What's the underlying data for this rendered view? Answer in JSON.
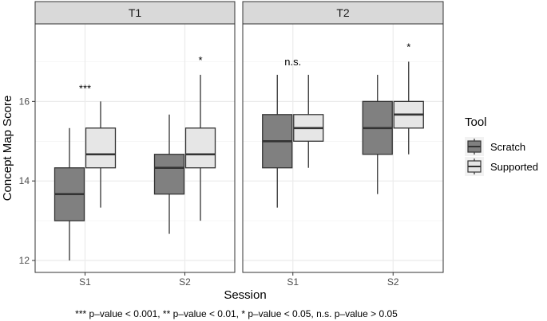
{
  "chart_data": {
    "type": "boxplot",
    "title": "",
    "xlabel": "Session",
    "ylabel": "Concept Map Score",
    "ylim": [
      11.7,
      17.95
    ],
    "yticks": [
      12,
      14,
      16
    ],
    "categories": [
      "S1",
      "S2"
    ],
    "facets": [
      "T1",
      "T2"
    ],
    "legend": {
      "title": "Tool",
      "position": "right",
      "entries": [
        {
          "name": "Scratch",
          "color": "#808080"
        },
        {
          "name": "Supported",
          "color": "#e6e6e6"
        }
      ]
    },
    "panels": [
      {
        "facet": "T1",
        "groups": [
          {
            "session": "S1",
            "annotation": "***",
            "boxes": [
              {
                "tool": "Scratch",
                "min": 12.0,
                "q1": 13.0,
                "median": 13.67,
                "q3": 14.33,
                "max": 15.33
              },
              {
                "tool": "Supported",
                "min": 13.33,
                "q1": 14.33,
                "median": 14.67,
                "q3": 15.33,
                "max": 16.0
              }
            ]
          },
          {
            "session": "S2",
            "annotation": "*",
            "boxes": [
              {
                "tool": "Scratch",
                "min": 12.67,
                "q1": 13.67,
                "median": 14.33,
                "q3": 14.67,
                "max": 15.67
              },
              {
                "tool": "Supported",
                "min": 13.0,
                "q1": 14.33,
                "median": 14.67,
                "q3": 15.33,
                "max": 16.67
              }
            ]
          }
        ]
      },
      {
        "facet": "T2",
        "groups": [
          {
            "session": "S1",
            "annotation": "n.s.",
            "boxes": [
              {
                "tool": "Scratch",
                "min": 13.33,
                "q1": 14.33,
                "median": 15.0,
                "q3": 15.67,
                "max": 16.67
              },
              {
                "tool": "Supported",
                "min": 14.33,
                "q1": 15.0,
                "median": 15.33,
                "q3": 15.67,
                "max": 16.67
              }
            ]
          },
          {
            "session": "S2",
            "annotation": "*",
            "boxes": [
              {
                "tool": "Scratch",
                "min": 13.67,
                "q1": 14.67,
                "median": 15.33,
                "q3": 16.0,
                "max": 16.67
              },
              {
                "tool": "Supported",
                "min": 14.67,
                "q1": 15.33,
                "median": 15.67,
                "q3": 16.0,
                "max": 17.0
              }
            ]
          }
        ]
      }
    ],
    "caption": "*** p–value < 0.001, ** p–value < 0.01, * p–value < 0.05, n.s. p–value > 0.05"
  }
}
